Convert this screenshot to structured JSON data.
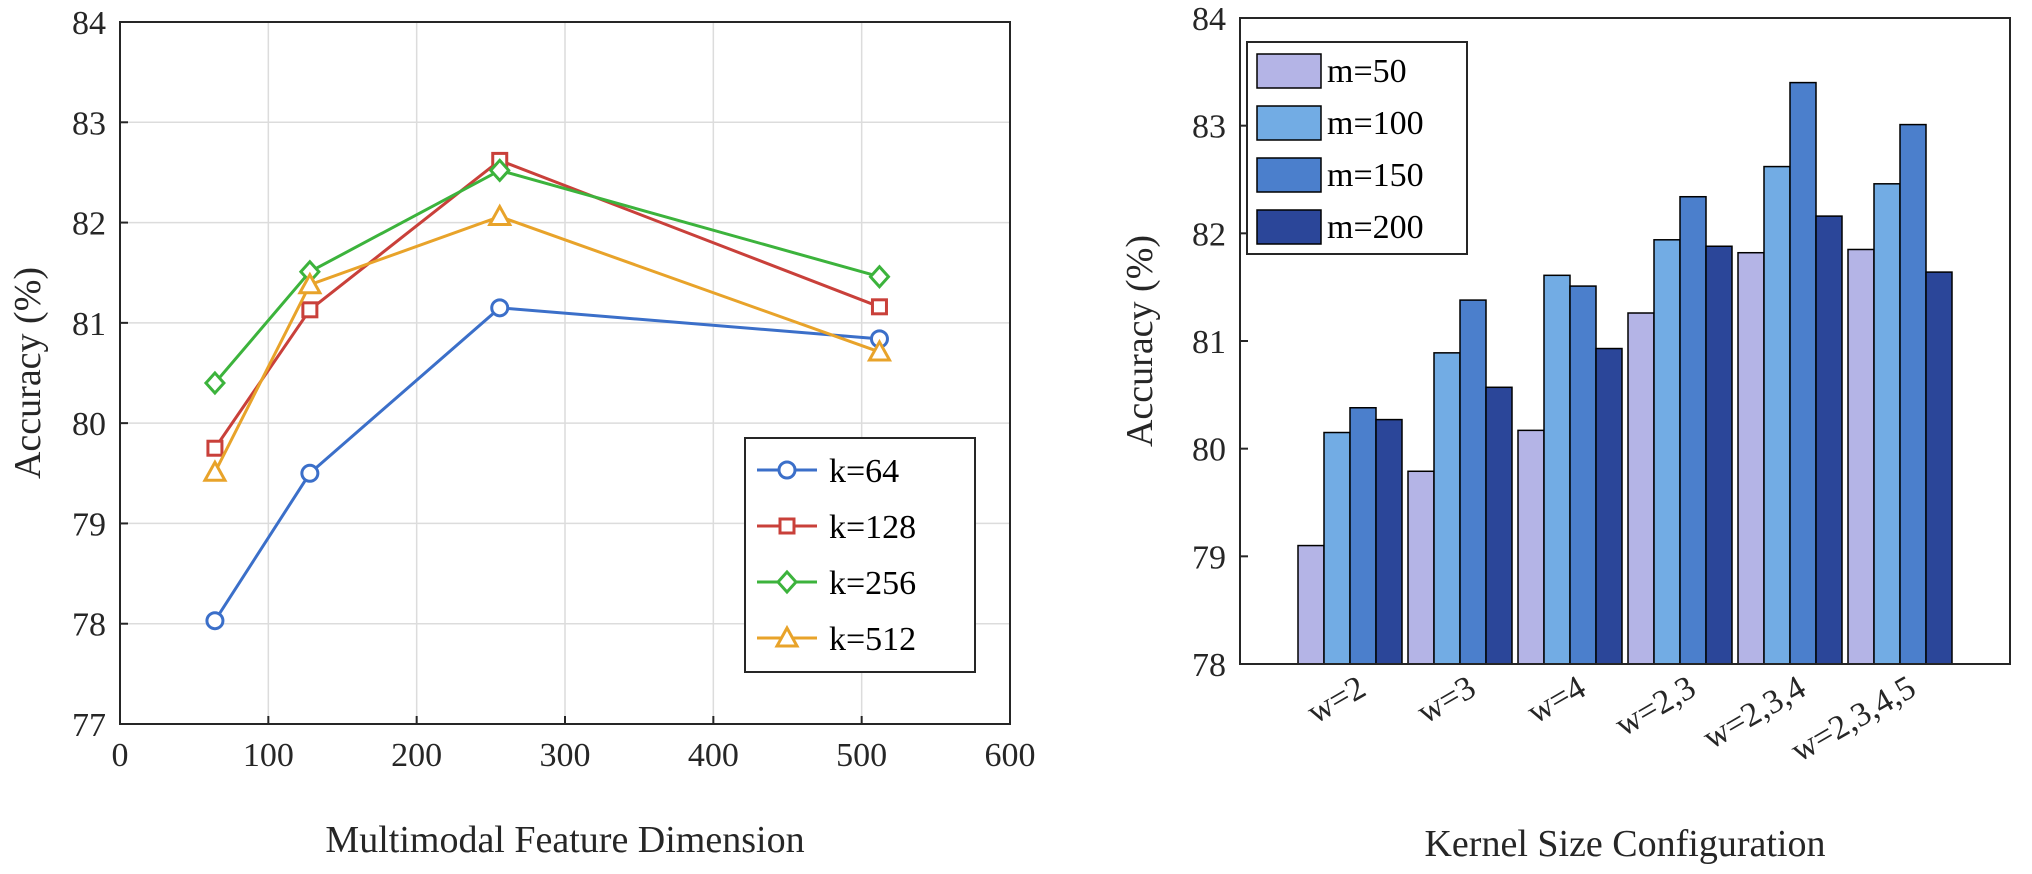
{
  "chart_data": [
    {
      "type": "line",
      "title": "",
      "xlabel": "Multimodal Feature Dimension",
      "ylabel": "Accuracy (%)",
      "xlim": [
        0,
        600
      ],
      "ylim": [
        77,
        84
      ],
      "xticks": [
        "0",
        "100",
        "200",
        "300",
        "400",
        "500",
        "600"
      ],
      "yticks": [
        "77",
        "78",
        "79",
        "80",
        "81",
        "82",
        "83",
        "84"
      ],
      "grid": true,
      "legend_position": "bottom-right",
      "x": [
        64,
        128,
        256,
        512
      ],
      "series": [
        {
          "name": "k=64",
          "values": [
            78.03,
            79.5,
            81.15,
            80.84
          ],
          "color": "#3b6fc9",
          "marker": "circle"
        },
        {
          "name": "k=128",
          "values": [
            79.75,
            81.13,
            82.62,
            81.16
          ],
          "color": "#c9403a",
          "marker": "square"
        },
        {
          "name": "k=256",
          "values": [
            80.4,
            81.51,
            82.52,
            81.46
          ],
          "color": "#3cb33c",
          "marker": "diamond"
        },
        {
          "name": "k=512",
          "values": [
            79.51,
            81.38,
            82.06,
            80.71
          ],
          "color": "#e8a32a",
          "marker": "triangle"
        }
      ]
    },
    {
      "type": "bar",
      "title": "",
      "xlabel": "Kernel Size Configuration",
      "ylabel": "Accuracy (%)",
      "ylim": [
        78,
        84
      ],
      "yticks": [
        "78",
        "79",
        "80",
        "81",
        "82",
        "83",
        "84"
      ],
      "grid": false,
      "legend_position": "top-left",
      "categories": [
        "w=2",
        "w=3",
        "w=4",
        "w=2,3",
        "w=2,3,4",
        "w=2,3,4,5"
      ],
      "series": [
        {
          "name": "m=50",
          "values": [
            79.1,
            79.79,
            80.17,
            81.26,
            81.82,
            81.85
          ],
          "color": "#b4b4e6"
        },
        {
          "name": "m=100",
          "values": [
            80.15,
            80.89,
            81.61,
            81.94,
            82.62,
            82.46
          ],
          "color": "#72ace4"
        },
        {
          "name": "m=150",
          "values": [
            80.38,
            81.38,
            81.51,
            82.34,
            83.4,
            83.01
          ],
          "color": "#4b7fcc"
        },
        {
          "name": "m=200",
          "values": [
            80.27,
            80.57,
            80.93,
            81.88,
            82.16,
            81.64
          ],
          "color": "#2b4699"
        }
      ]
    }
  ]
}
